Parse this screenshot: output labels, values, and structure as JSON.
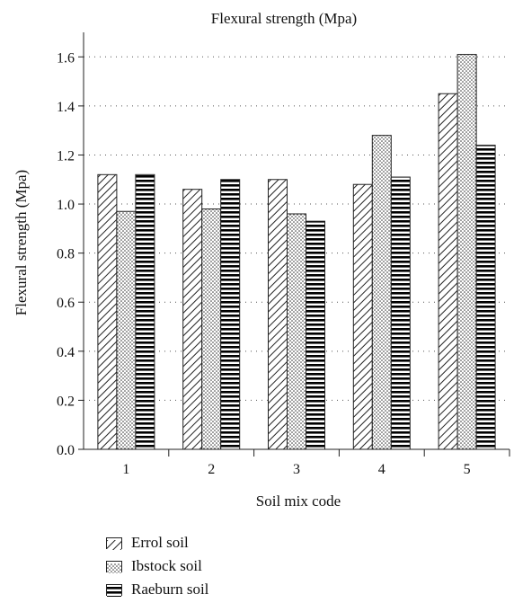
{
  "chart_data": {
    "type": "bar",
    "title": "Flexural strength (Mpa)",
    "xlabel": "Soil mix code",
    "ylabel": "Flexural strength (Mpa)",
    "categories": [
      "1",
      "2",
      "3",
      "4",
      "5"
    ],
    "ylim": [
      0.0,
      1.7
    ],
    "yticks": [
      "0.0",
      "0.2",
      "0.4",
      "0.6",
      "0.8",
      "1.0",
      "1.2",
      "1.4",
      "1.6"
    ],
    "grid": "horizontal dotted",
    "legend_position": "bottom-left",
    "series": [
      {
        "name": "Errol soil",
        "pattern": "diagonal-hatch",
        "values": [
          1.12,
          1.06,
          1.1,
          1.08,
          1.45
        ]
      },
      {
        "name": "Ibstock soil",
        "pattern": "dots",
        "values": [
          0.97,
          0.98,
          0.96,
          1.28,
          1.61
        ]
      },
      {
        "name": "Raeburn soil",
        "pattern": "horizontal-stripes",
        "values": [
          1.12,
          1.1,
          0.93,
          1.11,
          1.24
        ]
      }
    ]
  }
}
